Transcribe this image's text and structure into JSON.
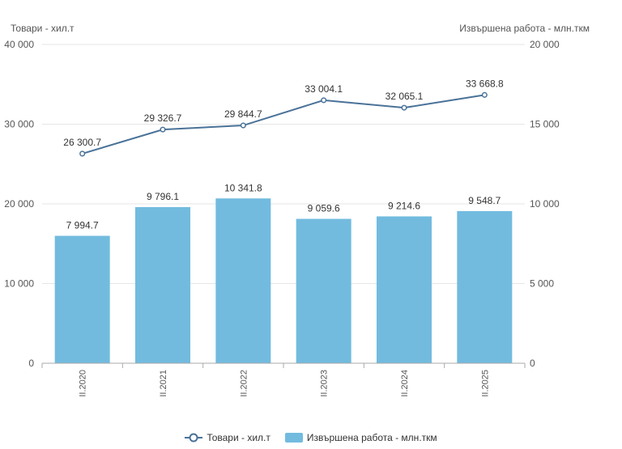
{
  "chart_data": {
    "type": "bar",
    "categories": [
      "II.2020",
      "II.2021",
      "II.2022",
      "II.2023",
      "II.2024",
      "II.2025"
    ],
    "left_axis_title": "Товари - хил.т",
    "right_axis_title": "Извършена работа - млн.ткм",
    "left_ylim": [
      0,
      40000
    ],
    "right_ylim": [
      0,
      20000
    ],
    "left_ticks": [
      0,
      10000,
      20000,
      30000,
      40000
    ],
    "right_ticks": [
      0,
      5000,
      10000,
      15000,
      20000
    ],
    "left_tick_labels": [
      "0",
      "10 000",
      "20 000",
      "30 000",
      "40 000"
    ],
    "right_tick_labels": [
      "0",
      "5 000",
      "10 000",
      "15 000",
      "20 000"
    ],
    "grid": true,
    "legend_position": "bottom",
    "series": [
      {
        "name": "Товари - хил.т",
        "kind": "line",
        "axis": "left",
        "color": "#4a7298",
        "values": [
          26300.7,
          29326.7,
          29844.7,
          33004.1,
          32065.1,
          33668.8
        ],
        "labels": [
          "26 300.7",
          "29 326.7",
          "29 844.7",
          "33 004.1",
          "32 065.1",
          "33 668.8"
        ]
      },
      {
        "name": "Извършена работа - млн.ткм",
        "kind": "bar",
        "axis": "right",
        "color": "#72bbdf",
        "values": [
          7994.7,
          9796.1,
          10341.8,
          9059.6,
          9214.6,
          9548.7
        ],
        "labels": [
          "7 994.7",
          "9 796.1",
          "10 341.8",
          "9 059.6",
          "9 214.6",
          "9 548.7"
        ]
      }
    ]
  },
  "legend": {
    "line_label": "Товари - хил.т",
    "bar_label": "Извършена работа - млн.ткм"
  }
}
